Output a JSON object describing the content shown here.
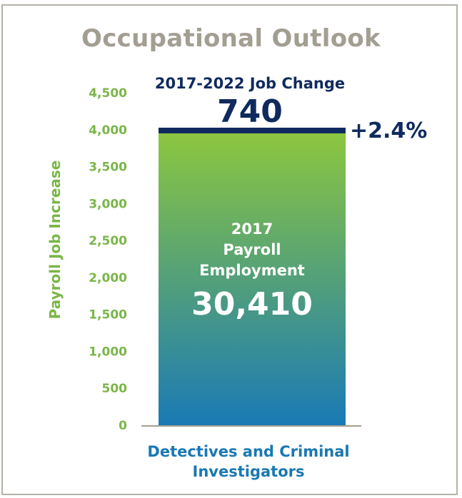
{
  "title": "Occupational Outlook",
  "chart_data": {
    "type": "bar",
    "ylabel": "Payroll Job Increase",
    "ylim": [
      0,
      4500
    ],
    "yticks": [
      0,
      500,
      1000,
      1500,
      2000,
      2500,
      3000,
      3500,
      4000,
      4500
    ],
    "ytick_labels": [
      "0",
      "500",
      "1,000",
      "1,500",
      "2,000",
      "2,500",
      "3,000",
      "3,500",
      "4,000",
      "4,500"
    ],
    "categories": [
      "Detectives and Criminal Investigators"
    ],
    "category_lines": [
      "Detectives and Criminal",
      "Investigators"
    ],
    "base": {
      "label_lines": [
        "2017",
        "Payroll",
        "Employment"
      ],
      "value": 30410,
      "value_text": "30,410",
      "axis_value": 3950
    },
    "change": {
      "label": "2017-2022 Job Change",
      "value": 740,
      "value_text": "740",
      "percent_text": "+2.4%"
    },
    "colors": {
      "bar_top": "#8cc63f",
      "bar_bottom": "#1a7ab5",
      "change_band": "#0f2a5e",
      "axis_text": "#7ab648"
    }
  }
}
